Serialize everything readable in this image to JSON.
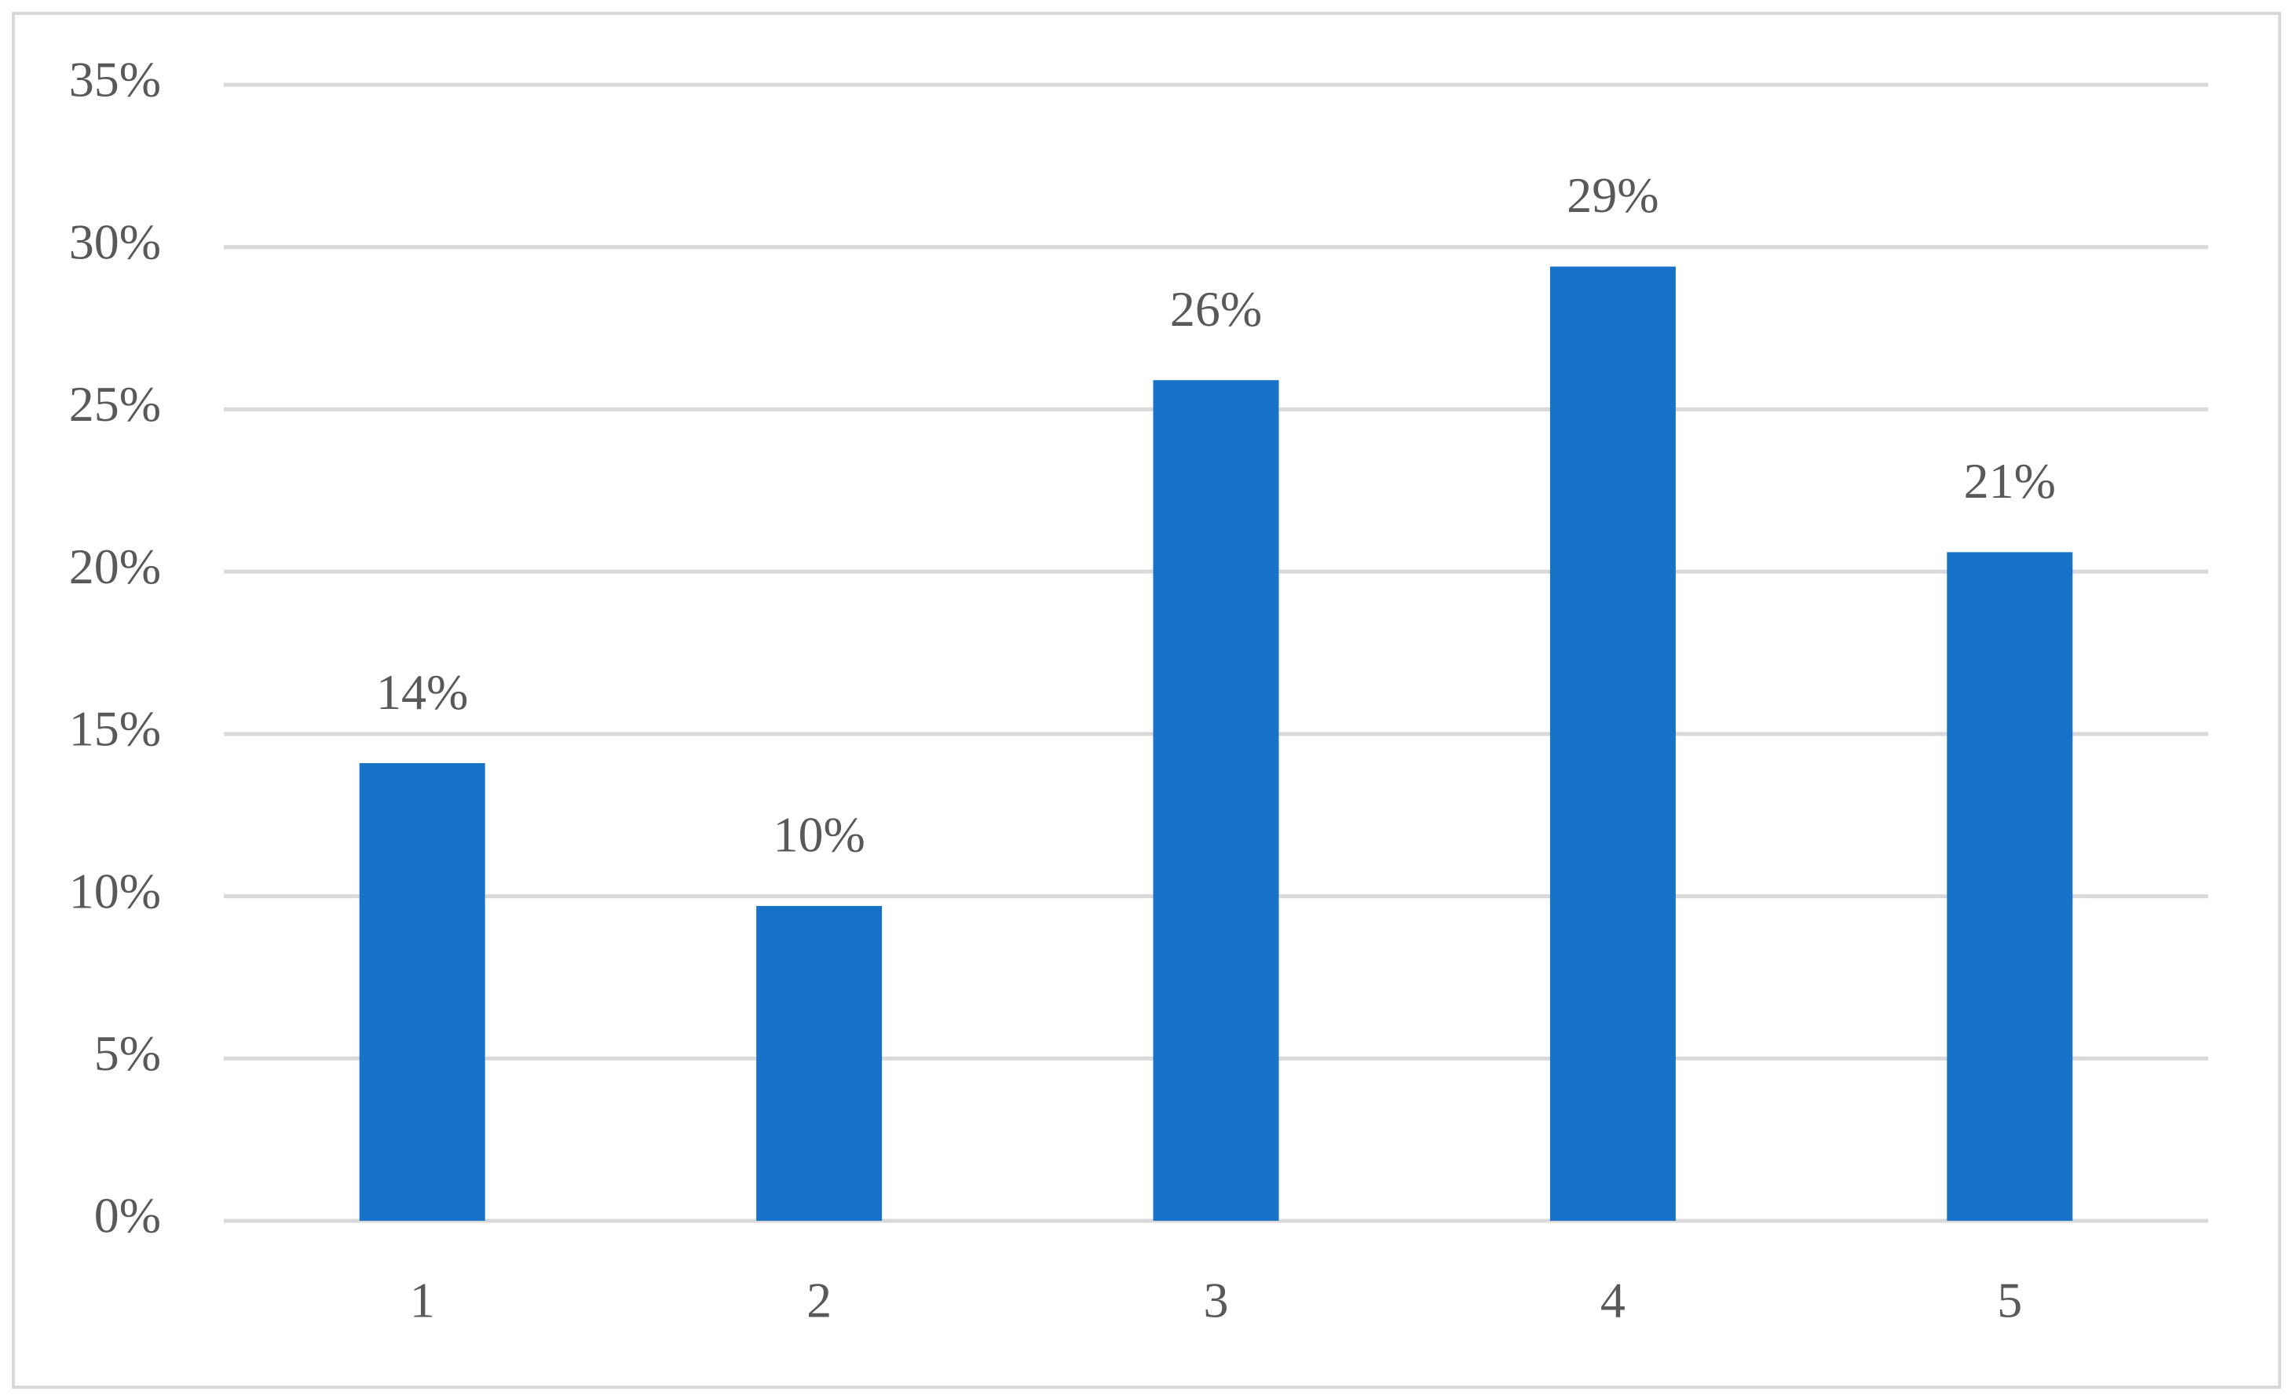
{
  "chart_data": {
    "type": "bar",
    "categories": [
      "1",
      "2",
      "3",
      "4",
      "5"
    ],
    "values": [
      14.1,
      9.7,
      25.9,
      29.4,
      20.6
    ],
    "value_labels": [
      "14%",
      "10%",
      "26%",
      "29%",
      "21%"
    ],
    "color": "#1873c8",
    "ylim": [
      0,
      35
    ],
    "yticks": [
      {
        "value": 0,
        "label": "0%"
      },
      {
        "value": 5,
        "label": "5%"
      },
      {
        "value": 10,
        "label": "10%"
      },
      {
        "value": 15,
        "label": "15%"
      },
      {
        "value": 20,
        "label": "20%"
      },
      {
        "value": 25,
        "label": "25%"
      },
      {
        "value": 30,
        "label": "30%"
      },
      {
        "value": 35,
        "label": "35%"
      }
    ],
    "grid": true
  }
}
